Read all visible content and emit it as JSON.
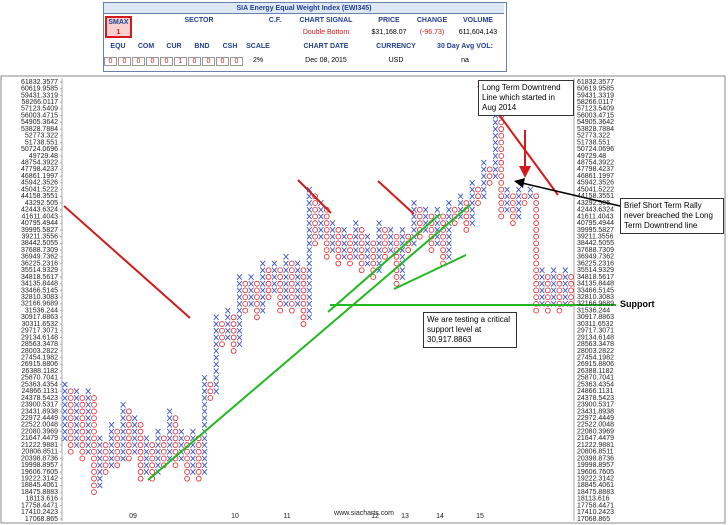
{
  "header": {
    "title": "SIA Energy Equal Weight Index (EWI345)",
    "smax_label": "SMAX",
    "smax": "1",
    "sector_label": "SECTOR",
    "cf_label": "C.F.",
    "signal_label": "CHART SIGNAL",
    "signal": "Double Bottom",
    "price_label": "PRICE",
    "price": "$31,168.07",
    "change_label": "CHANGE",
    "change": "(-96.73)",
    "volume_label": "VOLUME",
    "volume": "611,604,143",
    "rating_labels": [
      "EQU",
      "COM",
      "CUR",
      "BND",
      "CSH"
    ],
    "scale_label": "SCALE",
    "ratings": [
      0,
      0,
      0,
      0,
      0,
      1,
      0,
      0,
      0,
      0
    ],
    "scale": "2%",
    "date_label": "CHART DATE",
    "date": "Dec 08, 2015",
    "currency_label": "CURRENCY",
    "currency": "USD",
    "avgvol_label": "30 Day Avg VOL:",
    "avgvol": "na"
  },
  "chart_data": {
    "type": "point_and_figure",
    "log_scale": true,
    "x_color": "#3a55c8",
    "o_color": "#e0393b",
    "ylim": [
      17068.865,
      61832.3577
    ],
    "yticks": [
      61832.3577,
      60619.9585,
      59431.3319,
      58266.0117,
      57123.5409,
      56003.4715,
      54905.3642,
      53828.7884,
      52773.322,
      51738.551,
      50724.0696,
      49729.48,
      48754.3922,
      47798.4237,
      46861.1997,
      45942.3526,
      45041.5222,
      44158.3551,
      43292.505,
      42443.6324,
      41611.4043,
      40795.4944,
      39995.5827,
      39211.3556,
      38442.5055,
      37688.7309,
      36949.7362,
      36225.2316,
      35514.9329,
      34818.5617,
      34135.8448,
      33466.5145,
      32810.3083,
      32166.9689,
      31536.244,
      30917.8863,
      30311.6532,
      29717.3071,
      29134.6148,
      28563.3478,
      28003.2822,
      27454.1982,
      26915.8806,
      26388.1182,
      25870.7041,
      25363.4354,
      24866.1131,
      24378.5423,
      23900.5317,
      23431.8938,
      22972.4449,
      22522.0048,
      22080.3969,
      21647.4479,
      21222.9881,
      20806.8511,
      20398.8736,
      19998.8957,
      19606.7605,
      19222.3142,
      18845.4061,
      18475.8883,
      18113.616,
      17758.4471,
      17410.2423,
      17068.865
    ],
    "x_labels": [
      "09",
      "10",
      "11",
      "12",
      "13",
      "14",
      "15"
    ],
    "columns": [
      [
        "X",
        21647.4479,
        25363.4354
      ],
      [
        "O",
        20806.8511,
        24866.1131
      ],
      [
        "X",
        21222.9881,
        24866.1131
      ],
      [
        "O",
        20398.8736,
        24378.5423
      ],
      [
        "X",
        20806.8511,
        24866.1131
      ],
      [
        "O",
        18475.8883,
        24378.5423
      ],
      [
        "X",
        18845.4061,
        21647.4479
      ],
      [
        "O",
        19606.7605,
        21222.9881
      ],
      [
        "X",
        19998.8957,
        22522.0048
      ],
      [
        "O",
        19998.8957,
        22080.3969
      ],
      [
        "X",
        20398.8736,
        23900.5317
      ],
      [
        "O",
        20398.8736,
        23431.8938
      ],
      [
        "X",
        20806.8511,
        22972.4449
      ],
      [
        "O",
        19222.3142,
        22522.0048
      ],
      [
        "X",
        19606.7605,
        21647.4479
      ],
      [
        "O",
        19222.3142,
        21222.9881
      ],
      [
        "X",
        19606.7605,
        22080.3969
      ],
      [
        "O",
        19998.8957,
        21647.4479
      ],
      [
        "X",
        20398.8736,
        23431.8938
      ],
      [
        "O",
        19998.8957,
        22972.4449
      ],
      [
        "X",
        20398.8736,
        22080.3969
      ],
      [
        "O",
        19222.3142,
        21647.4479
      ],
      [
        "X",
        19606.7605,
        22080.3969
      ],
      [
        "O",
        19222.3142,
        21647.4479
      ],
      [
        "X",
        19606.7605,
        25870.7041
      ],
      [
        "O",
        24378.5423,
        25363.4354
      ],
      [
        "X",
        24866.1131,
        30917.8863
      ],
      [
        "O",
        28563.3478,
        30311.6532
      ],
      [
        "X",
        29134.6148,
        31536.244
      ],
      [
        "O",
        28003.2822,
        30917.8863
      ],
      [
        "X",
        28563.3478,
        34818.5617
      ],
      [
        "O",
        31536.244,
        34135.8448
      ],
      [
        "X",
        32166.9689,
        34818.5617
      ],
      [
        "O",
        30917.8863,
        34135.8448
      ],
      [
        "X",
        31536.244,
        36225.2316
      ],
      [
        "O",
        32810.3083,
        35514.9329
      ],
      [
        "X",
        33466.5145,
        36225.2316
      ],
      [
        "O",
        31536.244,
        35514.9329
      ],
      [
        "X",
        32166.9689,
        36949.7362
      ],
      [
        "O",
        31536.244,
        36225.2316
      ],
      [
        "X",
        32166.9689,
        36225.2316
      ],
      [
        "O",
        30311.6532,
        35514.9329
      ],
      [
        "X",
        30917.8863,
        45041.5222
      ],
      [
        "O",
        38442.5055,
        44158.3551
      ],
      [
        "X",
        39211.3556,
        43292.505
      ],
      [
        "O",
        36949.7362,
        42443.6324
      ],
      [
        "X",
        37688.7309,
        40795.4944
      ],
      [
        "O",
        36225.2316,
        39995.5827
      ],
      [
        "X",
        36949.7362,
        39995.5827
      ],
      [
        "O",
        36225.2316,
        39211.3556
      ],
      [
        "X",
        36949.7362,
        40795.4944
      ],
      [
        "O",
        35514.9329,
        39995.5827
      ],
      [
        "X",
        36225.2316,
        39211.3556
      ],
      [
        "O",
        34818.5617,
        38442.5055
      ],
      [
        "X",
        35514.9329,
        40795.4944
      ],
      [
        "O",
        36949.7362,
        39995.5827
      ],
      [
        "X",
        37688.7309,
        39995.5827
      ],
      [
        "O",
        34135.8448,
        39211.3556
      ],
      [
        "X",
        34818.5617,
        39995.5827
      ],
      [
        "O",
        37688.7309,
        39211.3556
      ],
      [
        "X",
        38442.5055,
        43292.505
      ],
      [
        "O",
        39211.3556,
        42443.6324
      ],
      [
        "X",
        39995.5827,
        42443.6324
      ],
      [
        "O",
        37688.7309,
        41611.4043
      ],
      [
        "X",
        38442.5055,
        42443.6324
      ],
      [
        "O",
        36225.2316,
        41611.4043
      ],
      [
        "X",
        36949.7362,
        43292.505
      ],
      [
        "O",
        40795.4944,
        42443.6324
      ],
      [
        "X",
        41611.4043,
        44158.3551
      ],
      [
        "O",
        39995.5827,
        43292.505
      ],
      [
        "X",
        40795.4944,
        45942.3526
      ],
      [
        "O",
        43292.505,
        45041.5222
      ],
      [
        "X",
        44158.3551,
        48754.3922
      ],
      [
        "O",
        45942.3526,
        47798.4237
      ],
      [
        "X",
        46861.1997,
        57123.5409
      ],
      [
        "O",
        41611.4043,
        56003.4715
      ],
      [
        "X",
        42443.6324,
        45041.5222
      ],
      [
        "O",
        40795.4944,
        44158.3551
      ],
      [
        "X",
        41611.4043,
        45041.5222
      ],
      [
        "O",
        43292.505,
        44158.3551
      ],
      [
        "X",
        44158.3551,
        45041.5222
      ],
      [
        "O",
        31536.244,
        44158.3551
      ],
      [
        "X",
        32166.9689,
        35514.9329
      ],
      [
        "O",
        31536.244,
        34818.5617
      ],
      [
        "X",
        32166.9689,
        35514.9329
      ],
      [
        "O",
        31536.244,
        34818.5617
      ],
      [
        "X",
        32166.9689,
        35514.9329
      ],
      [
        "O",
        32166.9689,
        34818.5617
      ]
    ],
    "annotations": [
      "Long Term Downtrend Line which started in Aug 2014",
      "Brief Short Term Rally never breached the Long Term Downtrend line",
      "We are testing a critical support level at 30,917.8863",
      "Support"
    ],
    "footer": "www.siacharts.com"
  }
}
